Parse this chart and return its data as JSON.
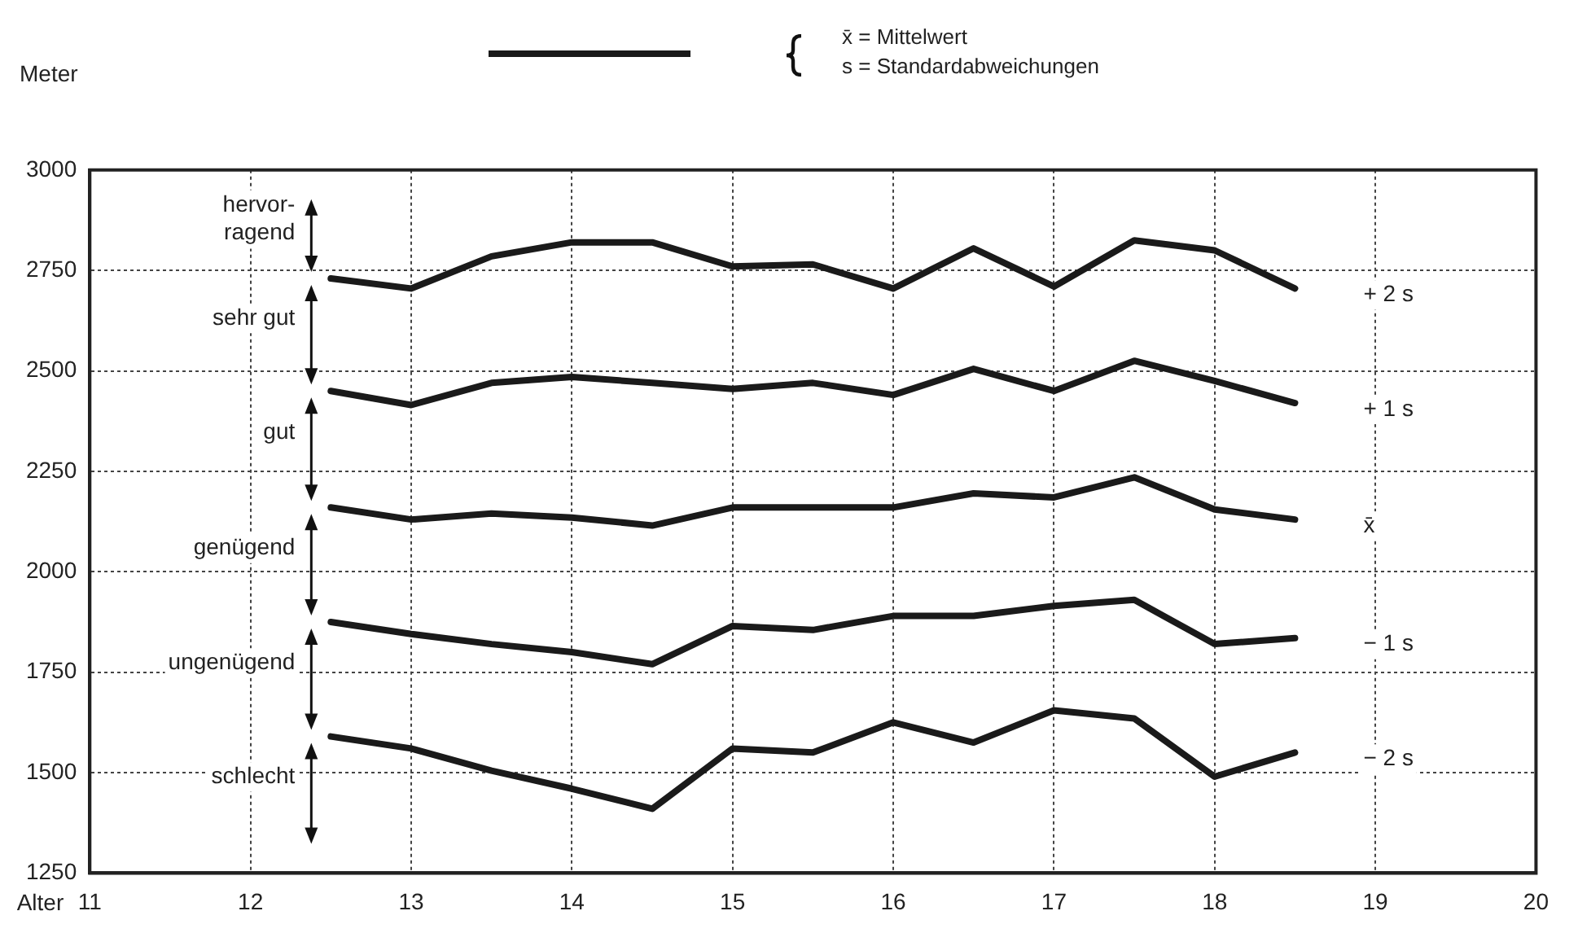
{
  "chart_data": {
    "type": "line",
    "ylabel": "Meter",
    "xlabel": "Alter",
    "x": [
      12.5,
      13,
      13.5,
      14,
      14.5,
      15,
      15.5,
      16,
      16.5,
      17,
      17.5,
      18,
      18.5
    ],
    "series": [
      {
        "name": "+ 2 s",
        "color": "#1a1a1a",
        "values": [
          2730,
          2705,
          2785,
          2820,
          2820,
          2760,
          2765,
          2705,
          2805,
          2710,
          2825,
          2800,
          2705
        ]
      },
      {
        "name": "+ 1 s",
        "color": "#1a1a1a",
        "values": [
          2450,
          2415,
          2470,
          2485,
          2470,
          2455,
          2470,
          2440,
          2505,
          2450,
          2525,
          2475,
          2420
        ]
      },
      {
        "name": "x̄",
        "color": "#1a1a1a",
        "values": [
          2160,
          2130,
          2145,
          2135,
          2115,
          2160,
          2160,
          2160,
          2195,
          2185,
          2235,
          2155,
          2130
        ]
      },
      {
        "name": "− 1 s",
        "color": "#1a1a1a",
        "values": [
          1875,
          1845,
          1820,
          1800,
          1770,
          1865,
          1855,
          1890,
          1890,
          1915,
          1930,
          1820,
          1835
        ]
      },
      {
        "name": "− 2 s",
        "color": "#1a1a1a",
        "values": [
          1590,
          1560,
          1505,
          1460,
          1410,
          1560,
          1550,
          1625,
          1575,
          1655,
          1635,
          1490,
          1550
        ]
      }
    ],
    "annotations": [
      "hervor-\nragend",
      "sehr gut",
      "gut",
      "genügend",
      "ungenügend",
      "schlecht",
      "x̄ = Mittelwert",
      "s = Standardabweichungen"
    ],
    "xlim": [
      11,
      20
    ],
    "xticks": [
      11,
      12,
      13,
      14,
      15,
      16,
      17,
      18,
      19,
      20
    ],
    "ylim": [
      1250,
      3000
    ],
    "yticks": [
      1250,
      1500,
      1750,
      2000,
      2250,
      2500,
      2750,
      3000
    ],
    "grid": true,
    "marker": "none",
    "line_style": "solid"
  }
}
